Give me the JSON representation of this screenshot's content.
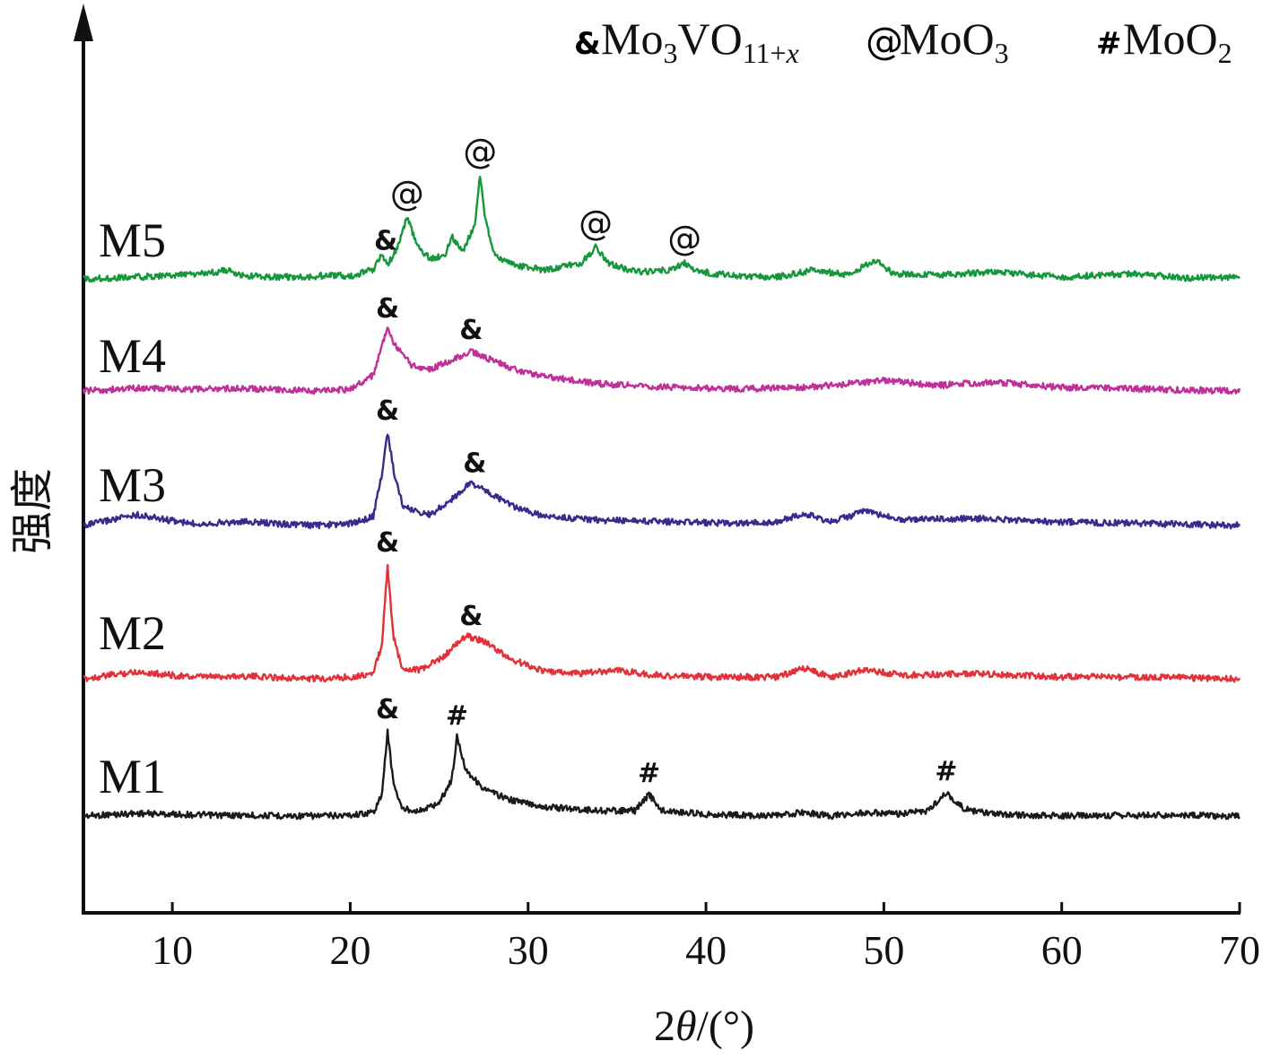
{
  "chart_data": {
    "type": "line",
    "xlabel": "2θ/(°)",
    "ylabel": "强度",
    "xlim": [
      5,
      70
    ],
    "xticks": [
      10,
      20,
      30,
      40,
      50,
      60,
      70
    ],
    "grid": false,
    "legend": {
      "placement": "top-right",
      "entries": [
        {
          "symbol": "&",
          "formula": "Mo",
          "sub1": "3",
          "mid": "VO",
          "sub2": "11+x",
          "italic_x": true
        },
        {
          "symbol": "@",
          "formula": "MoO",
          "sub1": "3"
        },
        {
          "symbol": "#",
          "formula": "MoO",
          "sub1": "2"
        }
      ]
    },
    "series": [
      {
        "name": "M1",
        "color": "#1a1a1a",
        "baseline": 0,
        "points": [
          [
            5,
            0
          ],
          [
            8,
            3
          ],
          [
            12,
            1
          ],
          [
            18,
            0
          ],
          [
            20,
            1
          ],
          [
            21.3,
            4
          ],
          [
            21.8,
            25
          ],
          [
            22.1,
            95
          ],
          [
            22.4,
            40
          ],
          [
            22.9,
            8
          ],
          [
            24,
            6
          ],
          [
            25,
            15
          ],
          [
            25.7,
            40
          ],
          [
            26,
            88
          ],
          [
            26.5,
            52
          ],
          [
            27.5,
            30
          ],
          [
            29,
            18
          ],
          [
            31,
            10
          ],
          [
            34,
            6
          ],
          [
            36,
            6
          ],
          [
            36.8,
            24
          ],
          [
            37.5,
            6
          ],
          [
            40,
            2
          ],
          [
            44,
            0
          ],
          [
            45.5,
            4
          ],
          [
            47,
            0
          ],
          [
            49,
            4
          ],
          [
            51,
            2
          ],
          [
            52.5,
            6
          ],
          [
            53.5,
            26
          ],
          [
            54.5,
            8
          ],
          [
            56,
            2
          ],
          [
            60,
            0
          ],
          [
            65,
            1
          ],
          [
            70,
            0
          ]
        ]
      },
      {
        "name": "M2",
        "color": "#e3313a",
        "baseline": 0,
        "points": [
          [
            5,
            0
          ],
          [
            8,
            8
          ],
          [
            11,
            2
          ],
          [
            14,
            3
          ],
          [
            18,
            0
          ],
          [
            20,
            2
          ],
          [
            21.3,
            6
          ],
          [
            21.8,
            40
          ],
          [
            22.1,
            128
          ],
          [
            22.4,
            50
          ],
          [
            22.9,
            12
          ],
          [
            24,
            10
          ],
          [
            25.2,
            24
          ],
          [
            26.5,
            48
          ],
          [
            27.5,
            42
          ],
          [
            29,
            22
          ],
          [
            31,
            8
          ],
          [
            33,
            6
          ],
          [
            35,
            10
          ],
          [
            37,
            4
          ],
          [
            40,
            2
          ],
          [
            44,
            2
          ],
          [
            45.5,
            12
          ],
          [
            47,
            2
          ],
          [
            49,
            10
          ],
          [
            51,
            4
          ],
          [
            55,
            6
          ],
          [
            60,
            2
          ],
          [
            65,
            2
          ],
          [
            70,
            0
          ]
        ]
      },
      {
        "name": "M3",
        "color": "#3b2a8c",
        "baseline": 0,
        "points": [
          [
            5,
            0
          ],
          [
            8,
            12
          ],
          [
            11,
            2
          ],
          [
            14,
            4
          ],
          [
            18,
            0
          ],
          [
            20,
            2
          ],
          [
            21.3,
            10
          ],
          [
            21.8,
            60
          ],
          [
            22.1,
            104
          ],
          [
            22.5,
            55
          ],
          [
            23,
            20
          ],
          [
            24.5,
            12
          ],
          [
            25.5,
            26
          ],
          [
            26.8,
            48
          ],
          [
            28,
            34
          ],
          [
            29.5,
            18
          ],
          [
            31,
            10
          ],
          [
            34,
            6
          ],
          [
            38,
            4
          ],
          [
            42,
            2
          ],
          [
            44,
            4
          ],
          [
            45.5,
            14
          ],
          [
            47,
            4
          ],
          [
            49,
            16
          ],
          [
            51,
            6
          ],
          [
            55,
            8
          ],
          [
            60,
            4
          ],
          [
            65,
            2
          ],
          [
            70,
            0
          ]
        ]
      },
      {
        "name": "M4",
        "color": "#c0309a",
        "baseline": 0,
        "points": [
          [
            5,
            0
          ],
          [
            8,
            3
          ],
          [
            11,
            2
          ],
          [
            14,
            3
          ],
          [
            18,
            0
          ],
          [
            20,
            2
          ],
          [
            21.3,
            18
          ],
          [
            21.8,
            52
          ],
          [
            22.1,
            68
          ],
          [
            22.6,
            48
          ],
          [
            23.5,
            28
          ],
          [
            24.5,
            24
          ],
          [
            25.5,
            33
          ],
          [
            26.8,
            44
          ],
          [
            28,
            34
          ],
          [
            29.5,
            22
          ],
          [
            31,
            16
          ],
          [
            34,
            8
          ],
          [
            38,
            4
          ],
          [
            42,
            2
          ],
          [
            45,
            4
          ],
          [
            47,
            6
          ],
          [
            50,
            12
          ],
          [
            53,
            6
          ],
          [
            56,
            10
          ],
          [
            60,
            4
          ],
          [
            65,
            2
          ],
          [
            70,
            0
          ]
        ]
      },
      {
        "name": "M5",
        "color": "#17973c",
        "baseline": 0,
        "points": [
          [
            5,
            0
          ],
          [
            8,
            2
          ],
          [
            10,
            4
          ],
          [
            12,
            6
          ],
          [
            13,
            10
          ],
          [
            14,
            3
          ],
          [
            17,
            2
          ],
          [
            19,
            4
          ],
          [
            20,
            3
          ],
          [
            21.3,
            10
          ],
          [
            21.7,
            26
          ],
          [
            22.1,
            16
          ],
          [
            22.6,
            32
          ],
          [
            23.2,
            68
          ],
          [
            23.8,
            36
          ],
          [
            24.5,
            22
          ],
          [
            25.3,
            26
          ],
          [
            25.7,
            48
          ],
          [
            26.3,
            30
          ],
          [
            27,
            60
          ],
          [
            27.3,
            115
          ],
          [
            27.6,
            64
          ],
          [
            28.2,
            24
          ],
          [
            29.5,
            14
          ],
          [
            31,
            10
          ],
          [
            33,
            18
          ],
          [
            33.8,
            35
          ],
          [
            34.5,
            18
          ],
          [
            36,
            8
          ],
          [
            38,
            10
          ],
          [
            38.8,
            18
          ],
          [
            39.5,
            8
          ],
          [
            42,
            3
          ],
          [
            44,
            2
          ],
          [
            46,
            10
          ],
          [
            48,
            4
          ],
          [
            49.6,
            22
          ],
          [
            50.5,
            6
          ],
          [
            53,
            4
          ],
          [
            56,
            8
          ],
          [
            60,
            2
          ],
          [
            64,
            6
          ],
          [
            67,
            1
          ],
          [
            70,
            2
          ]
        ]
      }
    ],
    "annotations": [
      {
        "series": "M1",
        "x": 22.1,
        "symbol": "&"
      },
      {
        "series": "M1",
        "x": 26.0,
        "symbol": "#"
      },
      {
        "series": "M1",
        "x": 36.8,
        "symbol": "#"
      },
      {
        "series": "M1",
        "x": 53.5,
        "symbol": "#"
      },
      {
        "series": "M2",
        "x": 22.1,
        "symbol": "&"
      },
      {
        "series": "M2",
        "x": 26.8,
        "symbol": "&"
      },
      {
        "series": "M3",
        "x": 22.1,
        "symbol": "&"
      },
      {
        "series": "M3",
        "x": 27.0,
        "symbol": "&"
      },
      {
        "series": "M4",
        "x": 22.1,
        "symbol": "&"
      },
      {
        "series": "M4",
        "x": 26.8,
        "symbol": "&"
      },
      {
        "series": "M5",
        "x": 22.0,
        "symbol": "&"
      },
      {
        "series": "M5",
        "x": 23.2,
        "symbol": "@"
      },
      {
        "series": "M5",
        "x": 27.3,
        "symbol": "@"
      },
      {
        "series": "M5",
        "x": 33.8,
        "symbol": "@"
      },
      {
        "series": "M5",
        "x": 38.8,
        "symbol": "@"
      }
    ]
  }
}
